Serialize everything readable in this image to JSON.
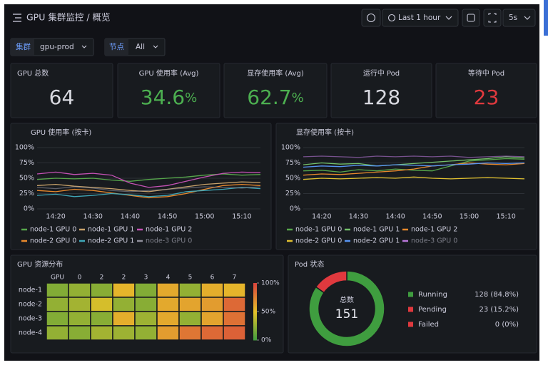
{
  "header": {
    "title": "GPU 集群监控 / 概览",
    "time_range": "Last 1 hour",
    "refresh": "5s"
  },
  "filters": [
    {
      "label": "集群",
      "value": "gpu-prod"
    },
    {
      "label": "节点",
      "value": "All"
    }
  ],
  "stats": [
    {
      "title": "GPU 总数",
      "value": 64,
      "color": "#d8d9e0"
    },
    {
      "title": "GPU 使用率 (Avg)",
      "value": 34.6,
      "unit": "%",
      "color": "#4caf50"
    },
    {
      "title": "显存使用率 (Avg)",
      "value": 62.7,
      "unit": "%",
      "color": "#4caf50"
    },
    {
      "title": "运行中 Pod",
      "value": 128,
      "color": "#d8d9e0"
    },
    {
      "title": "等待中 Pod",
      "value": 23,
      "color": "#e0393e"
    }
  ],
  "charts": [
    {
      "type": "line",
      "title": "GPU 使用率 (按卡)",
      "x": [
        null,
        "14:20",
        null,
        "14:30",
        null,
        "14:40",
        null,
        "14:50",
        null,
        "15:00",
        null,
        "15:10",
        null
      ],
      "ylim": [
        0,
        100
      ],
      "yticks": [
        {
          "value": 0,
          "label": "0%"
        },
        {
          "value": 25,
          "label": "25%"
        },
        {
          "value": 50,
          "label": "50%"
        },
        {
          "value": 75,
          "label": "75%"
        },
        {
          "value": 100,
          "label": "100%"
        }
      ],
      "grid": true,
      "series": [
        {
          "name": "node-1 GPU 0",
          "color": "#56a64b",
          "values": [
            48,
            50,
            49,
            50,
            47,
            45,
            48,
            50,
            52,
            55,
            57,
            55,
            56
          ]
        },
        {
          "name": "node-1 GPU 1",
          "color": "#c8a26a",
          "values": [
            38,
            40,
            37,
            35,
            33,
            30,
            28,
            32,
            36,
            40,
            42,
            44,
            43
          ]
        },
        {
          "name": "node-1 GPU 2",
          "color": "#c552b5",
          "values": [
            57,
            60,
            56,
            58,
            55,
            42,
            35,
            38,
            45,
            52,
            58,
            60,
            59
          ]
        },
        {
          "name": "node-2 GPU 0",
          "color": "#e8892c",
          "values": [
            30,
            28,
            32,
            30,
            26,
            22,
            18,
            20,
            25,
            32,
            38,
            40,
            38
          ]
        },
        {
          "name": "node-2 GPU 1",
          "color": "#3fa7b8",
          "values": [
            22,
            24,
            20,
            22,
            25,
            23,
            20,
            22,
            28,
            30,
            32,
            35,
            33
          ]
        },
        {
          "name": "node-3 GPU 0",
          "color": "#8e8e9a",
          "values": [
            35,
            33,
            36,
            34,
            30,
            28,
            30,
            32,
            34,
            36,
            35,
            34,
            36
          ]
        }
      ]
    },
    {
      "type": "line",
      "title": "显存使用率 (按卡)",
      "x": [
        null,
        "14:20",
        null,
        "14:30",
        null,
        "14:40",
        null,
        "14:50",
        null,
        "15:00",
        null,
        "15:10",
        null
      ],
      "ylim": [
        0,
        100
      ],
      "yticks": [
        {
          "value": 0,
          "label": "0%"
        },
        {
          "value": 25,
          "label": "25%"
        },
        {
          "value": 50,
          "label": "50%"
        },
        {
          "value": 75,
          "label": "75%"
        },
        {
          "value": 100,
          "label": "100%"
        }
      ],
      "grid": true,
      "series": [
        {
          "name": "node-1 GPU 0",
          "color": "#56a64b",
          "values": [
            62,
            63,
            60,
            64,
            62,
            65,
            63,
            62,
            70,
            78,
            80,
            82,
            81
          ]
        },
        {
          "name": "node-1 GPU 1",
          "color": "#73bf69",
          "values": [
            72,
            75,
            73,
            74,
            70,
            72,
            74,
            76,
            78,
            80,
            82,
            85,
            83
          ]
        },
        {
          "name": "node-1 GPU 2",
          "color": "#e8892c",
          "values": [
            55,
            57,
            56,
            58,
            60,
            62,
            65,
            70,
            72,
            75,
            73,
            72,
            74
          ]
        },
        {
          "name": "node-2 GPU 0",
          "color": "#e0c030",
          "values": [
            48,
            50,
            49,
            50,
            51,
            50,
            52,
            50,
            49,
            50,
            51,
            50,
            49
          ]
        },
        {
          "name": "node-2 GPU 1",
          "color": "#5794f2",
          "values": [
            68,
            70,
            69,
            71,
            70,
            72,
            71,
            70,
            72,
            73,
            75,
            74,
            75
          ]
        },
        {
          "name": "node-3 GPU 0",
          "color": "#b877d9",
          "values": [
            85,
            86,
            85,
            84,
            86,
            85,
            86,
            85,
            86,
            84,
            85,
            86,
            85
          ]
        }
      ]
    },
    {
      "type": "heatmap",
      "title": "GPU 资源分布",
      "columns": [
        "GPU",
        "0",
        "2",
        "2",
        "3",
        "4",
        "5",
        "6",
        "7"
      ],
      "rows": [
        "node-1",
        "node-2",
        "node-3",
        "node-4"
      ],
      "values": [
        [
          20,
          25,
          22,
          55,
          20,
          60,
          25,
          58,
          55
        ],
        [
          25,
          30,
          45,
          25,
          22,
          60,
          62,
          65,
          85
        ],
        [
          20,
          25,
          22,
          58,
          28,
          60,
          25,
          62,
          82
        ],
        [
          25,
          22,
          30,
          28,
          25,
          65,
          80,
          85,
          88
        ]
      ],
      "zlim": [
        0,
        100
      ],
      "zticks": [
        {
          "value": 100,
          "label": "100%"
        },
        {
          "value": 50,
          "label": "50%"
        },
        {
          "value": 0,
          "label": "0%"
        }
      ],
      "colors": [
        "#3f9d3f",
        "#e6c229",
        "#d9433c"
      ]
    },
    {
      "type": "donut",
      "title": "Pod 状态",
      "center_label": "总数",
      "total": 151,
      "categories": [
        "Running",
        "Pending",
        "Failed"
      ],
      "values": [
        128,
        23,
        0
      ],
      "value_labels": [
        "128 (84.8%)",
        "23 (15.2%)",
        "0 (0%)"
      ],
      "colors": [
        "#3f9d3f",
        "#e0393e",
        "#e0393e"
      ]
    }
  ]
}
